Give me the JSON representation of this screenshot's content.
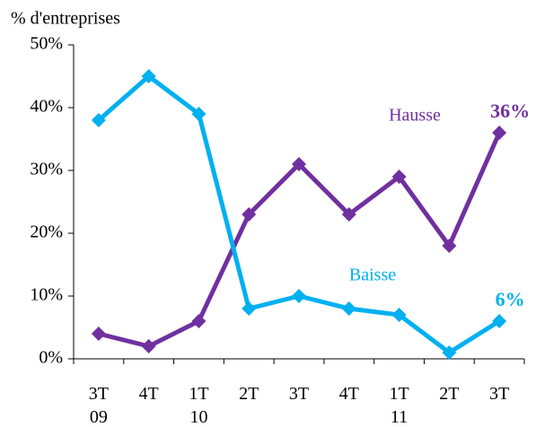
{
  "chart_data": {
    "type": "line",
    "y_axis_label": "% d'entreprises",
    "categories": [
      "3T\n09",
      "4T",
      "1T\n10",
      "2T",
      "3T",
      "4T",
      "1T\n11",
      "2T",
      "3T"
    ],
    "series": [
      {
        "name": "Hausse",
        "color": "#7030a0",
        "values": [
          4,
          2,
          6,
          23,
          31,
          23,
          29,
          18,
          36
        ],
        "value_labels": [
          null,
          null,
          null,
          null,
          null,
          null,
          null,
          null,
          "36%"
        ]
      },
      {
        "name": "Baisse",
        "color": "#00b0f0",
        "values": [
          38,
          45,
          39,
          8,
          10,
          8,
          7,
          1,
          6
        ],
        "value_labels": [
          null,
          null,
          null,
          null,
          null,
          null,
          null,
          null,
          "6%"
        ]
      }
    ],
    "ylim": [
      0,
      50
    ],
    "yticks": [
      {
        "value": 0,
        "label": "0%"
      },
      {
        "value": 10,
        "label": "10%"
      },
      {
        "value": 20,
        "label": "20%"
      },
      {
        "value": 30,
        "label": "30%"
      },
      {
        "value": 40,
        "label": "40%"
      },
      {
        "value": 50,
        "label": "50%"
      }
    ],
    "grid": false
  }
}
